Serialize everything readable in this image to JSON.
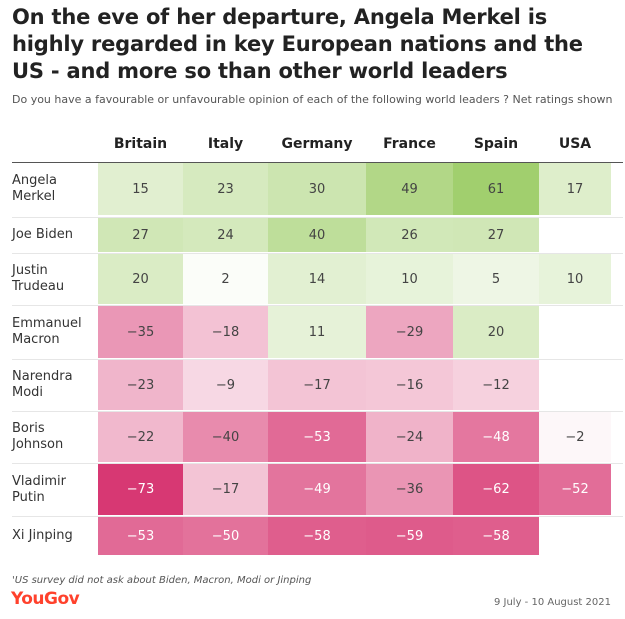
{
  "title": "On the eve of her departure, Angela Merkel is highly regarded in key European nations and the US - and more so than other world leaders",
  "subtitle": "Do you have a favourable or unfavourable opinion of each of the following world leaders ? Net ratings shown",
  "footnote": "'US survey did not ask about Biden, Macron, Modi or Jinping",
  "brand": "YouGov",
  "date_range": "9 July - 10 August 2021",
  "colors": {
    "positive_max": "#9ccc65",
    "negative_max": "#d6336f",
    "neutral": "#ffffff"
  },
  "chart_data": {
    "type": "heatmap",
    "title": "On the eve of her departure, Angela Merkel is highly regarded in key European nations and the US - and more so than other world leaders",
    "subtitle": "Do you have a favourable or unfavourable opinion of each of the following world leaders ? Net ratings shown",
    "columns": [
      "Britain",
      "Italy",
      "Germany",
      "France",
      "Spain",
      "USA"
    ],
    "rows": [
      {
        "label": [
          "Angela",
          "Merkel"
        ],
        "values": [
          15,
          23,
          30,
          49,
          61,
          17
        ]
      },
      {
        "label": [
          "Joe Biden"
        ],
        "values": [
          27,
          24,
          40,
          26,
          27,
          null
        ]
      },
      {
        "label": [
          "Justin",
          "Trudeau"
        ],
        "values": [
          20,
          2,
          14,
          10,
          5,
          10
        ]
      },
      {
        "label": [
          "Emmanuel",
          "Macron"
        ],
        "values": [
          -35,
          -18,
          11,
          -29,
          20,
          null
        ]
      },
      {
        "label": [
          "Narendra",
          "Modi"
        ],
        "values": [
          -23,
          -9,
          -17,
          -16,
          -12,
          null
        ]
      },
      {
        "label": [
          "Boris",
          "Johnson"
        ],
        "values": [
          -22,
          -40,
          -53,
          -24,
          -48,
          -2
        ]
      },
      {
        "label": [
          "Vladimir",
          "Putin"
        ],
        "values": [
          -73,
          -17,
          -49,
          -36,
          -62,
          -52
        ]
      },
      {
        "label": [
          "Xi Jinping"
        ],
        "values": [
          -53,
          -50,
          -58,
          -59,
          -58,
          null
        ]
      }
    ],
    "value_range": [
      -73,
      61
    ]
  }
}
